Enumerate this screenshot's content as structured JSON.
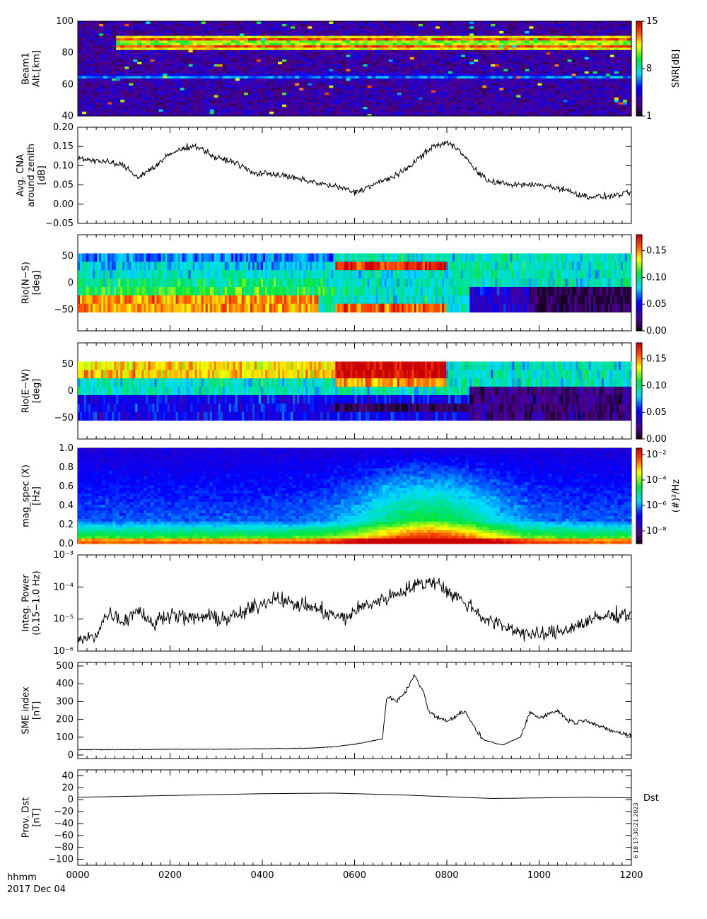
{
  "footer": {
    "time_label": "hhmm",
    "date_label": "2017 Dec 04"
  },
  "x_axis": {
    "ticks": [
      0,
      200,
      400,
      600,
      800,
      1000,
      1200
    ],
    "tick_labels": [
      "0000",
      "0200",
      "0400",
      "0600",
      "0800",
      "1000",
      "1200"
    ],
    "range": [
      0,
      1200
    ]
  },
  "chart_data": [
    {
      "type": "heatmap",
      "ylabel": [
        "Beam1",
        "Alt.[km]"
      ],
      "ylim": [
        40,
        100
      ],
      "yticks": [
        40,
        60,
        80,
        100
      ],
      "colorbar": {
        "label": "SNR[dB]",
        "range": [
          1,
          15
        ],
        "ticks": [
          1,
          8,
          15
        ]
      },
      "features": [
        {
          "level": "high",
          "altitudes": [
            89,
            84
          ],
          "x_range": [
            80,
            1200
          ]
        },
        {
          "level": "medium",
          "altitudes": [
            65
          ],
          "x_range": [
            0,
            1200
          ]
        }
      ]
    },
    {
      "type": "line",
      "ylabel": [
        "Avg. CNA",
        "around zenith",
        "[dB]"
      ],
      "ylim": [
        -0.05,
        0.2
      ],
      "yticks": [
        -0.05,
        0.0,
        0.05,
        0.1,
        0.15,
        0.2
      ],
      "ytick_labels": [
        "−0.05",
        "0.00",
        "0.05",
        "0.10",
        "0.15",
        "0.20"
      ],
      "x": [
        0,
        60,
        100,
        130,
        170,
        200,
        240,
        260,
        300,
        340,
        380,
        420,
        460,
        500,
        540,
        580,
        600,
        640,
        660,
        700,
        740,
        770,
        800,
        830,
        860,
        890,
        950,
        1000,
        1050,
        1100,
        1150,
        1200
      ],
      "y": [
        0.12,
        0.11,
        0.1,
        0.07,
        0.1,
        0.13,
        0.15,
        0.15,
        0.12,
        0.11,
        0.08,
        0.08,
        0.07,
        0.06,
        0.05,
        0.04,
        0.03,
        0.05,
        0.06,
        0.08,
        0.12,
        0.15,
        0.16,
        0.14,
        0.09,
        0.06,
        0.05,
        0.05,
        0.04,
        0.02,
        0.02,
        0.03
      ]
    },
    {
      "type": "heatmap",
      "ylabel": [
        "Rio(N−S)",
        "[deg]"
      ],
      "ylim": [
        -90,
        90
      ],
      "yticks": [
        -50,
        0,
        50
      ],
      "ytick_labels": [
        "−50",
        "0",
        "50"
      ],
      "data_rows": [
        -55,
        55
      ],
      "colorbar": {
        "range": [
          0,
          0.18
        ],
        "ticks": [
          0.0,
          0.05,
          0.1,
          0.15
        ],
        "tick_labels": [
          "0.00",
          "0.05",
          "0.10",
          "0.15"
        ]
      }
    },
    {
      "type": "heatmap",
      "ylabel": [
        "Rio(E−W)",
        "[deg]"
      ],
      "ylim": [
        -90,
        90
      ],
      "yticks": [
        -50,
        0,
        50
      ],
      "ytick_labels": [
        "−50",
        "0",
        "50"
      ],
      "data_rows": [
        -55,
        55
      ],
      "colorbar": {
        "range": [
          0,
          0.18
        ],
        "ticks": [
          0.0,
          0.05,
          0.1,
          0.15
        ],
        "tick_labels": [
          "0.00",
          "0.05",
          "0.10",
          "0.15"
        ]
      }
    },
    {
      "type": "heatmap",
      "ylabel": [
        "mag_spec (X)",
        "[Hz]"
      ],
      "ylim": [
        0,
        1.0
      ],
      "yticks": [
        0.0,
        0.2,
        0.4,
        0.6,
        0.8,
        1.0
      ],
      "ytick_labels": [
        "0.0",
        "0.2",
        "0.4",
        "0.6",
        "0.8",
        "1.0"
      ],
      "colorbar": {
        "label": "(#)²/Hz",
        "log_range": [
          -9,
          -1.5
        ],
        "ticks": [
          -8,
          -6,
          -4,
          -2
        ],
        "tick_labels": [
          "10⁻⁸",
          "10⁻⁶",
          "10⁻⁴",
          "10⁻²"
        ]
      }
    },
    {
      "type": "line",
      "yscale": "log",
      "ylabel": [
        "Integ. Power",
        "(0.15−1.0 Hz)"
      ],
      "ylim": [
        1e-06,
        0.001
      ],
      "yticks": [
        1e-06,
        1e-05,
        0.0001,
        0.001
      ],
      "ytick_labels": [
        "10⁻⁶",
        "10⁻⁵",
        "10⁻⁴",
        "10⁻³"
      ],
      "x": [
        0,
        40,
        70,
        100,
        130,
        160,
        200,
        240,
        280,
        320,
        360,
        400,
        430,
        460,
        500,
        540,
        580,
        620,
        660,
        700,
        740,
        780,
        800,
        840,
        880,
        920,
        960,
        1000,
        1040,
        1080,
        1120,
        1160,
        1200
      ],
      "y": [
        2e-06,
        3e-06,
        1.5e-05,
        8e-06,
        2e-05,
        6e-06,
        1.5e-05,
        1e-05,
        1.2e-05,
        1e-05,
        1.5e-05,
        3e-05,
        5e-05,
        3e-05,
        2.5e-05,
        1.5e-05,
        1e-05,
        2.5e-05,
        4e-05,
        7e-05,
        0.00012,
        0.00015,
        7e-05,
        3e-05,
        1e-05,
        6e-06,
        4e-06,
        3e-06,
        4e-06,
        6e-06,
        1e-05,
        1.3e-05,
        1.5e-05
      ]
    },
    {
      "type": "line",
      "ylabel": [
        "SME index",
        "[nT]"
      ],
      "ylim": [
        -20,
        520
      ],
      "yticks": [
        0,
        100,
        200,
        300,
        400,
        500
      ],
      "x": [
        0,
        100,
        200,
        300,
        400,
        500,
        550,
        600,
        640,
        660,
        670,
        690,
        710,
        730,
        750,
        760,
        780,
        800,
        820,
        840,
        860,
        880,
        900,
        920,
        960,
        980,
        1000,
        1040,
        1060,
        1080,
        1100,
        1140,
        1180,
        1200
      ],
      "y": [
        30,
        30,
        32,
        32,
        35,
        38,
        45,
        60,
        80,
        90,
        330,
        300,
        350,
        450,
        350,
        250,
        210,
        190,
        220,
        250,
        150,
        85,
        70,
        55,
        100,
        240,
        210,
        250,
        200,
        180,
        200,
        150,
        120,
        110
      ]
    },
    {
      "type": "line",
      "ylabel": [
        "Prov. Dst",
        "[nT]"
      ],
      "ylim": [
        -110,
        50
      ],
      "yticks": [
        -100,
        -80,
        -60,
        -40,
        -20,
        0,
        20,
        40
      ],
      "ytick_labels": [
        "−100",
        "−80",
        "−60",
        "−40",
        "−20",
        "0",
        "20",
        "40"
      ],
      "legend": "Dst",
      "side_note": "6 18 17:30:21 2023",
      "x": [
        0,
        200,
        400,
        550,
        700,
        900,
        1000,
        1100,
        1200
      ],
      "y": [
        4,
        7,
        10,
        11,
        8,
        2,
        3,
        4,
        3
      ]
    }
  ]
}
